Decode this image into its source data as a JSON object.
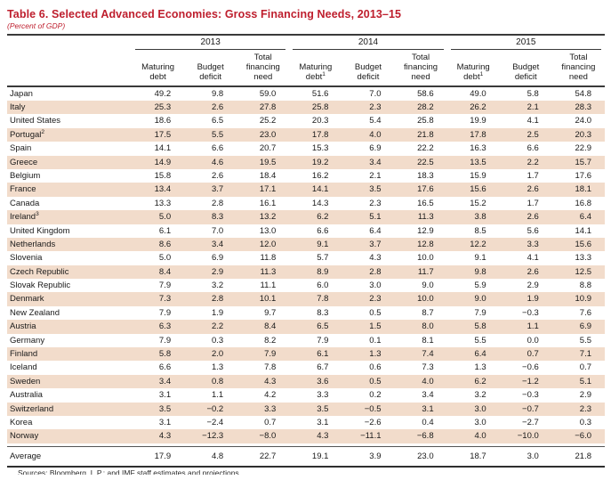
{
  "title": "Table 6. Selected Advanced Economies: Gross Financing Needs, 2013–15",
  "subtitle": "(Percent of GDP)",
  "colors": {
    "accent_red": "#be1e2d",
    "row_highlight": "#f2dccb",
    "rule_dark": "#3a3a3a"
  },
  "year_groups": [
    {
      "year": "2013",
      "columns": [
        {
          "label": "Maturing debt",
          "sup": ""
        },
        {
          "label": "Budget deficit",
          "sup": ""
        },
        {
          "label": "Total financing need",
          "sup": ""
        }
      ]
    },
    {
      "year": "2014",
      "columns": [
        {
          "label": "Maturing debt",
          "sup": "1"
        },
        {
          "label": "Budget deficit",
          "sup": ""
        },
        {
          "label": "Total financing need",
          "sup": ""
        }
      ]
    },
    {
      "year": "2015",
      "columns": [
        {
          "label": "Maturing debt",
          "sup": "1"
        },
        {
          "label": "Budget deficit",
          "sup": ""
        },
        {
          "label": "Total financing need",
          "sup": ""
        }
      ]
    }
  ],
  "rows": [
    {
      "country": "Japan",
      "sup": "",
      "values": [
        "49.2",
        "9.8",
        "59.0",
        "51.6",
        "7.0",
        "58.6",
        "49.0",
        "5.8",
        "54.8"
      ]
    },
    {
      "country": "Italy",
      "sup": "",
      "values": [
        "25.3",
        "2.6",
        "27.8",
        "25.8",
        "2.3",
        "28.2",
        "26.2",
        "2.1",
        "28.3"
      ]
    },
    {
      "country": "United States",
      "sup": "",
      "values": [
        "18.6",
        "6.5",
        "25.2",
        "20.3",
        "5.4",
        "25.8",
        "19.9",
        "4.1",
        "24.0"
      ]
    },
    {
      "country": "Portugal",
      "sup": "2",
      "values": [
        "17.5",
        "5.5",
        "23.0",
        "17.8",
        "4.0",
        "21.8",
        "17.8",
        "2.5",
        "20.3"
      ]
    },
    {
      "country": "Spain",
      "sup": "",
      "values": [
        "14.1",
        "6.6",
        "20.7",
        "15.3",
        "6.9",
        "22.2",
        "16.3",
        "6.6",
        "22.9"
      ]
    },
    {
      "country": "Greece",
      "sup": "",
      "values": [
        "14.9",
        "4.6",
        "19.5",
        "19.2",
        "3.4",
        "22.5",
        "13.5",
        "2.2",
        "15.7"
      ]
    },
    {
      "country": "Belgium",
      "sup": "",
      "values": [
        "15.8",
        "2.6",
        "18.4",
        "16.2",
        "2.1",
        "18.3",
        "15.9",
        "1.7",
        "17.6"
      ]
    },
    {
      "country": "France",
      "sup": "",
      "values": [
        "13.4",
        "3.7",
        "17.1",
        "14.1",
        "3.5",
        "17.6",
        "15.6",
        "2.6",
        "18.1"
      ]
    },
    {
      "country": "Canada",
      "sup": "",
      "values": [
        "13.3",
        "2.8",
        "16.1",
        "14.3",
        "2.3",
        "16.5",
        "15.2",
        "1.7",
        "16.8"
      ]
    },
    {
      "country": "Ireland",
      "sup": "3",
      "values": [
        "5.0",
        "8.3",
        "13.2",
        "6.2",
        "5.1",
        "11.3",
        "3.8",
        "2.6",
        "6.4"
      ]
    },
    {
      "country": "United Kingdom",
      "sup": "",
      "values": [
        "6.1",
        "7.0",
        "13.0",
        "6.6",
        "6.4",
        "12.9",
        "8.5",
        "5.6",
        "14.1"
      ]
    },
    {
      "country": "Netherlands",
      "sup": "",
      "values": [
        "8.6",
        "3.4",
        "12.0",
        "9.1",
        "3.7",
        "12.8",
        "12.2",
        "3.3",
        "15.6"
      ]
    },
    {
      "country": "Slovenia",
      "sup": "",
      "values": [
        "5.0",
        "6.9",
        "11.8",
        "5.7",
        "4.3",
        "10.0",
        "9.1",
        "4.1",
        "13.3"
      ]
    },
    {
      "country": "Czech Republic",
      "sup": "",
      "values": [
        "8.4",
        "2.9",
        "11.3",
        "8.9",
        "2.8",
        "11.7",
        "9.8",
        "2.6",
        "12.5"
      ]
    },
    {
      "country": "Slovak Republic",
      "sup": "",
      "values": [
        "7.9",
        "3.2",
        "11.1",
        "6.0",
        "3.0",
        "9.0",
        "5.9",
        "2.9",
        "8.8"
      ]
    },
    {
      "country": "Denmark",
      "sup": "",
      "values": [
        "7.3",
        "2.8",
        "10.1",
        "7.8",
        "2.3",
        "10.0",
        "9.0",
        "1.9",
        "10.9"
      ]
    },
    {
      "country": "New Zealand",
      "sup": "",
      "values": [
        "7.9",
        "1.9",
        "9.7",
        "8.3",
        "0.5",
        "8.7",
        "7.9",
        "−0.3",
        "7.6"
      ]
    },
    {
      "country": "Austria",
      "sup": "",
      "values": [
        "6.3",
        "2.2",
        "8.4",
        "6.5",
        "1.5",
        "8.0",
        "5.8",
        "1.1",
        "6.9"
      ]
    },
    {
      "country": "Germany",
      "sup": "",
      "values": [
        "7.9",
        "0.3",
        "8.2",
        "7.9",
        "0.1",
        "8.1",
        "5.5",
        "0.0",
        "5.5"
      ]
    },
    {
      "country": "Finland",
      "sup": "",
      "values": [
        "5.8",
        "2.0",
        "7.9",
        "6.1",
        "1.3",
        "7.4",
        "6.4",
        "0.7",
        "7.1"
      ]
    },
    {
      "country": "Iceland",
      "sup": "",
      "values": [
        "6.6",
        "1.3",
        "7.8",
        "6.7",
        "0.6",
        "7.3",
        "1.3",
        "−0.6",
        "0.7"
      ]
    },
    {
      "country": "Sweden",
      "sup": "",
      "values": [
        "3.4",
        "0.8",
        "4.3",
        "3.6",
        "0.5",
        "4.0",
        "6.2",
        "−1.2",
        "5.1"
      ]
    },
    {
      "country": "Australia",
      "sup": "",
      "values": [
        "3.1",
        "1.1",
        "4.2",
        "3.3",
        "0.2",
        "3.4",
        "3.2",
        "−0.3",
        "2.9"
      ]
    },
    {
      "country": "Switzerland",
      "sup": "",
      "values": [
        "3.5",
        "−0.2",
        "3.3",
        "3.5",
        "−0.5",
        "3.1",
        "3.0",
        "−0.7",
        "2.3"
      ]
    },
    {
      "country": "Korea",
      "sup": "",
      "values": [
        "3.1",
        "−2.4",
        "0.7",
        "3.1",
        "−2.6",
        "0.4",
        "3.0",
        "−2.7",
        "0.3"
      ]
    },
    {
      "country": "Norway",
      "sup": "",
      "values": [
        "4.3",
        "−12.3",
        "−8.0",
        "4.3",
        "−11.1",
        "−6.8",
        "4.0",
        "−10.0",
        "−6.0"
      ]
    }
  ],
  "average": {
    "label": "Average",
    "values": [
      "17.9",
      "4.8",
      "22.7",
      "19.1",
      "3.9",
      "23.0",
      "18.7",
      "3.0",
      "21.8"
    ]
  },
  "footer": {
    "source": "Sources: Bloomberg, L.P.; and IMF staff estimates and projections."
  }
}
